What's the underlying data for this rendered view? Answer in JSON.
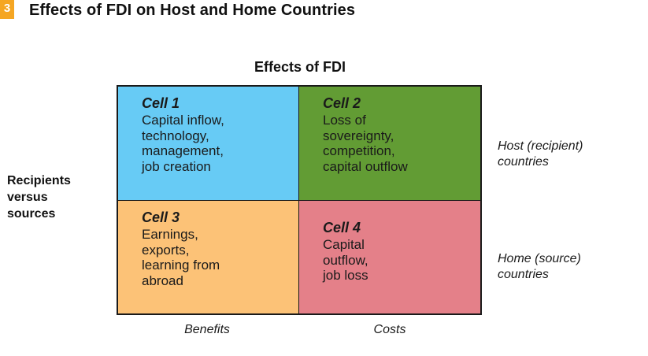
{
  "figure": {
    "number": "3",
    "title": "Effects of FDI on Host and Home Countries"
  },
  "top_label": "Effects of FDI",
  "left_label": "Recipients\nversus\nsources",
  "rows": [
    {
      "label": "Host (recipient)\ncountries"
    },
    {
      "label": "Home (source)\ncountries"
    }
  ],
  "columns": [
    {
      "label": "Benefits"
    },
    {
      "label": "Costs"
    }
  ],
  "cells": [
    {
      "title": "Cell 1",
      "text": "Capital inflow,\ntechnology,\nmanagement,\njob creation",
      "color": "#67cbf5"
    },
    {
      "title": "Cell 2",
      "text": "Loss of\nsovereignty,\ncompetition,\ncapital outflow",
      "color": "#629c34"
    },
    {
      "title": "Cell 3",
      "text": "Earnings,\nexports,\nlearning from\nabroad",
      "color": "#fcc277"
    },
    {
      "title": "Cell 4",
      "text": "Capital\noutflow,\njob loss",
      "color": "#e48089"
    }
  ]
}
